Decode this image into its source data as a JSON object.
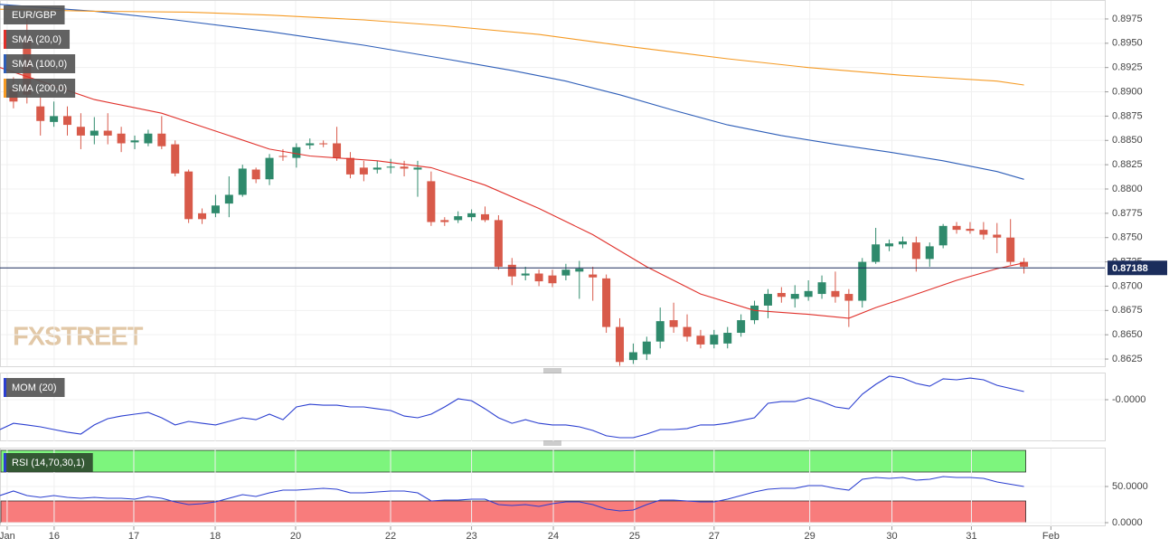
{
  "chart_data": [
    {
      "type": "candlestick",
      "title": "EUR/GBP",
      "watermark": "FXSTREET",
      "up_color": "#2f8a6c",
      "down_color": "#d85a4a",
      "x": [
        0,
        1,
        2,
        3,
        4,
        5,
        6,
        7,
        8,
        9,
        10,
        11,
        12,
        13,
        14,
        15,
        16,
        17,
        18,
        19,
        20,
        21,
        22,
        23,
        24,
        25,
        26,
        27,
        28,
        29,
        30,
        31,
        32,
        33,
        34,
        35,
        36,
        37,
        38,
        39,
        40,
        41,
        42,
        43,
        44,
        45,
        46,
        47,
        48,
        49,
        50,
        51,
        52,
        53,
        54,
        55,
        56,
        57,
        58,
        59,
        60,
        61,
        62,
        63,
        64,
        65,
        66,
        67,
        68,
        69,
        70,
        71,
        72,
        73,
        74,
        75
      ],
      "ohlc": [
        [
          0.8903,
          0.8915,
          0.8883,
          0.889
        ],
        [
          0.8953,
          0.8976,
          0.8888,
          0.8897
        ],
        [
          0.8885,
          0.8894,
          0.8855,
          0.887
        ],
        [
          0.8869,
          0.889,
          0.8864,
          0.8875
        ],
        [
          0.8875,
          0.8885,
          0.8855,
          0.8866
        ],
        [
          0.8864,
          0.8878,
          0.8841,
          0.8855
        ],
        [
          0.8855,
          0.8874,
          0.8846,
          0.886
        ],
        [
          0.886,
          0.8878,
          0.8846,
          0.8855
        ],
        [
          0.8857,
          0.8864,
          0.8838,
          0.8847
        ],
        [
          0.8848,
          0.8855,
          0.8841,
          0.885
        ],
        [
          0.8847,
          0.8861,
          0.8844,
          0.8857
        ],
        [
          0.8857,
          0.8875,
          0.8841,
          0.8844
        ],
        [
          0.8846,
          0.885,
          0.8813,
          0.8816
        ],
        [
          0.8818,
          0.882,
          0.8765,
          0.8769
        ],
        [
          0.8775,
          0.878,
          0.8764,
          0.8769
        ],
        [
          0.8775,
          0.8794,
          0.8771,
          0.8783
        ],
        [
          0.8785,
          0.8813,
          0.8771,
          0.8794
        ],
        [
          0.8794,
          0.8825,
          0.8792,
          0.8821
        ],
        [
          0.882,
          0.8822,
          0.8806,
          0.881
        ],
        [
          0.881,
          0.8836,
          0.8804,
          0.8832
        ],
        [
          0.8834,
          0.8841,
          0.8829,
          0.8833
        ],
        [
          0.8832,
          0.8847,
          0.8822,
          0.8843
        ],
        [
          0.8845,
          0.8852,
          0.8841,
          0.8847
        ],
        [
          0.8847,
          0.885,
          0.8843,
          0.8846
        ],
        [
          0.8847,
          0.8864,
          0.8829,
          0.8832
        ],
        [
          0.8832,
          0.8838,
          0.8811,
          0.8815
        ],
        [
          0.8822,
          0.8829,
          0.8808,
          0.8815
        ],
        [
          0.882,
          0.8829,
          0.8816,
          0.8822
        ],
        [
          0.8822,
          0.8831,
          0.8816,
          0.8823
        ],
        [
          0.8823,
          0.8829,
          0.8813,
          0.8821
        ],
        [
          0.882,
          0.8829,
          0.8792,
          0.8822
        ],
        [
          0.8808,
          0.8818,
          0.8762,
          0.8766
        ],
        [
          0.8768,
          0.8771,
          0.8762,
          0.8766
        ],
        [
          0.8768,
          0.8777,
          0.8765,
          0.8772
        ],
        [
          0.8771,
          0.8779,
          0.8767,
          0.8775
        ],
        [
          0.8774,
          0.8782,
          0.8766,
          0.8768
        ],
        [
          0.8768,
          0.8773,
          0.8717,
          0.872
        ],
        [
          0.8722,
          0.8729,
          0.8701,
          0.871
        ],
        [
          0.8711,
          0.872,
          0.8706,
          0.8713
        ],
        [
          0.8713,
          0.8717,
          0.87,
          0.8705
        ],
        [
          0.8711,
          0.8717,
          0.8699,
          0.8703
        ],
        [
          0.8711,
          0.8723,
          0.8706,
          0.8717
        ],
        [
          0.8715,
          0.8726,
          0.8687,
          0.8718
        ],
        [
          0.8712,
          0.872,
          0.8685,
          0.8709
        ],
        [
          0.8708,
          0.8712,
          0.8652,
          0.8658
        ],
        [
          0.8658,
          0.8667,
          0.8618,
          0.8622
        ],
        [
          0.8624,
          0.8641,
          0.862,
          0.8632
        ],
        [
          0.863,
          0.8648,
          0.8624,
          0.8643
        ],
        [
          0.8643,
          0.8678,
          0.8636,
          0.8664
        ],
        [
          0.8665,
          0.8683,
          0.8652,
          0.8658
        ],
        [
          0.8658,
          0.8671,
          0.8643,
          0.8648
        ],
        [
          0.8649,
          0.8655,
          0.8636,
          0.864
        ],
        [
          0.864,
          0.8655,
          0.8636,
          0.865
        ],
        [
          0.8641,
          0.8658,
          0.8636,
          0.8652
        ],
        [
          0.8652,
          0.8671,
          0.8648,
          0.8665
        ],
        [
          0.8665,
          0.8685,
          0.8661,
          0.868
        ],
        [
          0.868,
          0.8697,
          0.8667,
          0.8692
        ],
        [
          0.8693,
          0.8699,
          0.8683,
          0.8689
        ],
        [
          0.8687,
          0.8701,
          0.8678,
          0.8692
        ],
        [
          0.8689,
          0.8706,
          0.8685,
          0.8695
        ],
        [
          0.8692,
          0.8711,
          0.8687,
          0.8704
        ],
        [
          0.8695,
          0.8715,
          0.8683,
          0.8689
        ],
        [
          0.8692,
          0.8697,
          0.8658,
          0.8685
        ],
        [
          0.8685,
          0.8729,
          0.8678,
          0.8725
        ],
        [
          0.8725,
          0.876,
          0.8723,
          0.8743
        ],
        [
          0.8741,
          0.8748,
          0.8736,
          0.8744
        ],
        [
          0.8743,
          0.8751,
          0.8739,
          0.8746
        ],
        [
          0.8745,
          0.8751,
          0.8715,
          0.8728
        ],
        [
          0.8728,
          0.8745,
          0.872,
          0.8741
        ],
        [
          0.8742,
          0.8764,
          0.8739,
          0.8762
        ],
        [
          0.8762,
          0.8766,
          0.8754,
          0.8758
        ],
        [
          0.8759,
          0.8766,
          0.8754,
          0.8757
        ],
        [
          0.8758,
          0.8766,
          0.8748,
          0.8753
        ],
        [
          0.8753,
          0.8765,
          0.8734,
          0.875
        ],
        [
          0.875,
          0.8769,
          0.8722,
          0.8725
        ],
        [
          0.8725,
          0.8729,
          0.8713,
          0.872
        ]
      ],
      "series": [
        {
          "name": "SMA (20,0)",
          "color": "#e0302a",
          "x": [
            -1,
            2,
            6,
            11,
            16,
            19,
            22,
            27,
            31,
            35,
            39,
            43,
            47,
            51,
            55,
            59,
            62,
            64,
            66,
            70,
            73,
            75
          ],
          "values": [
            0.8925,
            0.8911,
            0.8892,
            0.8878,
            0.8855,
            0.8841,
            0.8834,
            0.8829,
            0.8822,
            0.8804,
            0.878,
            0.8753,
            0.872,
            0.8692,
            0.8675,
            0.8671,
            0.8667,
            0.8678,
            0.8687,
            0.8706,
            0.8718,
            0.8724
          ]
        },
        {
          "name": "SMA (100,0)",
          "color": "#2e5eb8",
          "x": [
            -1,
            6,
            12,
            19,
            26,
            32,
            37,
            41,
            45,
            49,
            53,
            57,
            61,
            65,
            69,
            73,
            75
          ],
          "values": [
            0.899,
            0.8983,
            0.8974,
            0.8962,
            0.8948,
            0.8934,
            0.8922,
            0.8911,
            0.8897,
            0.8881,
            0.8866,
            0.8855,
            0.8846,
            0.8838,
            0.8829,
            0.8818,
            0.881
          ]
        },
        {
          "name": "SMA (200,0)",
          "color": "#f59a23",
          "x": [
            -1,
            6,
            13,
            19,
            26,
            32,
            39,
            46,
            53,
            59,
            66,
            73,
            75
          ],
          "values": [
            0.8985,
            0.8983,
            0.8982,
            0.8979,
            0.8974,
            0.8968,
            0.8959,
            0.8946,
            0.8934,
            0.8925,
            0.8917,
            0.8911,
            0.8907
          ]
        }
      ],
      "last_price": {
        "value": 0.87188,
        "color": "#1b2d5c"
      },
      "xlim": [
        -1,
        81
      ],
      "ylim": [
        0.86176,
        0.89945
      ],
      "yticks": [
        0.8625,
        {
          "value": 0.865,
          "label": "0.8650"
        },
        0.8675,
        {
          "value": 0.87,
          "label": "0.8700"
        },
        0.8725,
        {
          "value": 0.875,
          "label": "0.8750"
        },
        0.8775,
        {
          "value": 0.88,
          "label": "0.8800"
        },
        0.8825,
        {
          "value": 0.885,
          "label": "0.8850"
        },
        0.8875,
        {
          "value": 0.89,
          "label": "0.8900"
        },
        0.8925,
        {
          "value": 0.895,
          "label": "0.8950"
        },
        0.8975
      ]
    },
    {
      "type": "line",
      "series": [
        {
          "name": "MOM (20)",
          "color": "#2b3fd0",
          "x": [
            -1,
            0,
            1,
            2,
            3,
            4,
            5,
            6,
            7,
            8,
            9,
            10,
            11,
            12,
            13,
            14,
            15,
            16,
            17,
            18,
            19,
            20,
            21,
            22,
            23,
            24,
            25,
            26,
            27,
            28,
            29,
            30,
            31,
            32,
            33,
            34,
            35,
            36,
            37,
            38,
            39,
            40,
            41,
            42,
            43,
            44,
            45,
            46,
            47,
            48,
            49,
            50,
            51,
            52,
            53,
            54,
            55,
            56,
            57,
            58,
            59,
            60,
            61,
            62,
            63,
            64,
            65,
            66,
            67,
            68,
            69,
            70,
            71,
            72,
            73,
            75
          ],
          "values": [
            -0.0157,
            -0.0124,
            -0.0133,
            -0.0143,
            -0.0157,
            -0.0171,
            -0.0181,
            -0.0133,
            -0.01,
            -0.0086,
            -0.0076,
            -0.0067,
            -0.0095,
            -0.0133,
            -0.0114,
            -0.0124,
            -0.0133,
            -0.0114,
            -0.0095,
            -0.0105,
            -0.0076,
            -0.0105,
            -0.0038,
            -0.0024,
            -0.0029,
            -0.0029,
            -0.0038,
            -0.0038,
            -0.0048,
            -0.0057,
            -0.0086,
            -0.0095,
            -0.0076,
            -0.0038,
            0.0005,
            -0.0005,
            -0.0048,
            -0.0095,
            -0.0124,
            -0.0105,
            -0.0124,
            -0.0133,
            -0.0133,
            -0.0143,
            -0.0162,
            -0.019,
            -0.02,
            -0.02,
            -0.0181,
            -0.0157,
            -0.0157,
            -0.0152,
            -0.0133,
            -0.0133,
            -0.0124,
            -0.011,
            -0.0095,
            -0.0019,
            -0.001,
            -0.001,
            0.001,
            -0.001,
            -0.0038,
            -0.0048,
            0.0029,
            0.0081,
            0.0124,
            0.0114,
            0.0086,
            0.0071,
            0.011,
            0.0105,
            0.0114,
            0.0105,
            0.0076,
            0.0043
          ]
        }
      ],
      "xlim": [
        -1,
        81
      ],
      "ylim": [
        -0.0219,
        0.0143
      ],
      "yticks": [
        {
          "value": 0,
          "label": "-0.0000"
        }
      ]
    },
    {
      "type": "line",
      "series": [
        {
          "name": "RSI (14,70,30,1)",
          "color": "#2b3fd0",
          "x": [
            -1,
            0,
            1,
            2,
            3,
            4,
            5,
            6,
            7,
            8,
            9,
            10,
            11,
            12,
            13,
            14,
            15,
            16,
            17,
            18,
            19,
            20,
            21,
            22,
            23,
            24,
            25,
            26,
            27,
            28,
            29,
            30,
            31,
            32,
            33,
            34,
            35,
            36,
            37,
            38,
            39,
            40,
            41,
            42,
            43,
            44,
            45,
            46,
            47,
            48,
            49,
            50,
            51,
            52,
            53,
            54,
            55,
            56,
            57,
            58,
            59,
            60,
            61,
            62,
            63,
            64,
            65,
            66,
            67,
            68,
            69,
            70,
            71,
            72,
            73,
            75
          ],
          "values": [
            37.5,
            43.8,
            37.5,
            35,
            37.5,
            35,
            33.8,
            35,
            33.8,
            33.8,
            32.5,
            36.3,
            33.8,
            28.8,
            25,
            26.3,
            28.8,
            33.8,
            38.8,
            36.3,
            41.3,
            45,
            45,
            46.3,
            47.5,
            46.3,
            41.3,
            41.3,
            42.5,
            43.8,
            43.8,
            41.3,
            30,
            31.3,
            31.3,
            32.5,
            32.5,
            25,
            23.8,
            25,
            22.5,
            26.3,
            28.8,
            28.8,
            25,
            18.8,
            16.3,
            17.5,
            25,
            31.3,
            31.3,
            30,
            28.8,
            28.8,
            32.5,
            37.5,
            42.5,
            46.3,
            47.5,
            47.5,
            51.3,
            51.3,
            47.5,
            45,
            60,
            62.5,
            61.3,
            62.5,
            58.8,
            60,
            63.8,
            62.5,
            62.5,
            61.3,
            56.3,
            50
          ]
        }
      ],
      "zones": [
        {
          "from": 70,
          "to": 100,
          "color": "#7df57d"
        },
        {
          "from": 0,
          "to": 30,
          "color": "#f87c7c"
        }
      ],
      "xlim": [
        -1,
        81
      ],
      "ylim": [
        -5,
        103.75
      ],
      "yticks": [
        {
          "value": 0,
          "label": "0.0000"
        },
        {
          "value": 50,
          "label": "50.0000"
        }
      ],
      "xticks": [
        {
          "value": -0.47,
          "label": "Jan"
        },
        {
          "value": 3.02,
          "label": "16"
        },
        {
          "value": 8.93,
          "label": "17"
        },
        {
          "value": 14.97,
          "label": "18"
        },
        {
          "value": 20.94,
          "label": "20"
        },
        {
          "value": 27.99,
          "label": "22"
        },
        {
          "value": 34.0,
          "label": "23"
        },
        {
          "value": 40.07,
          "label": "24"
        },
        {
          "value": 46.1,
          "label": "25"
        },
        {
          "value": 52.0,
          "label": "27"
        },
        {
          "value": 59.1,
          "label": "29"
        },
        {
          "value": 65.2,
          "label": "30"
        },
        {
          "value": 71.1,
          "label": "31"
        },
        {
          "value": 77.0,
          "label": "Feb"
        }
      ]
    }
  ]
}
